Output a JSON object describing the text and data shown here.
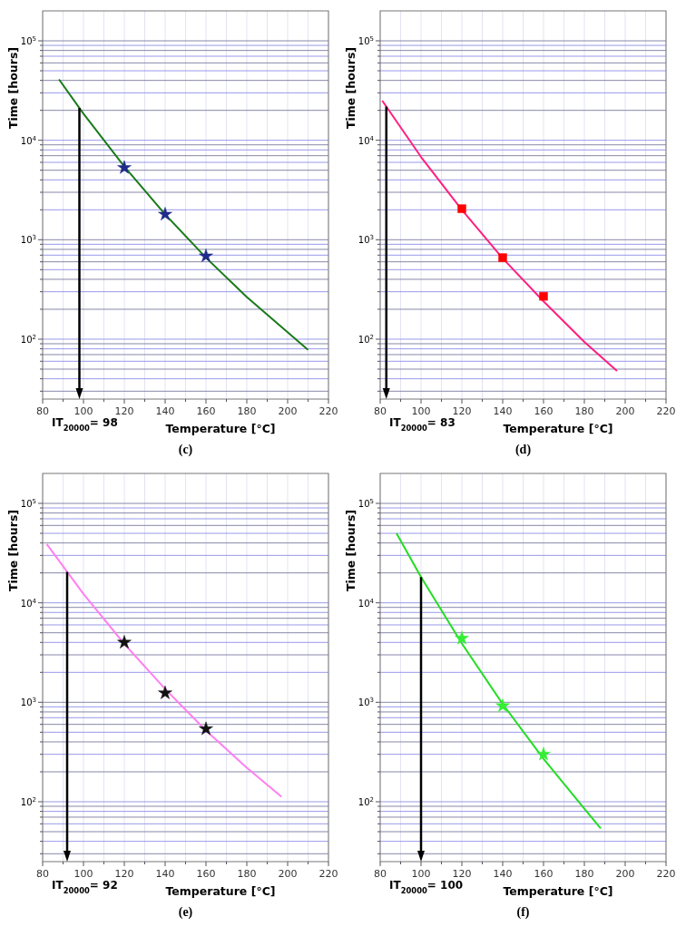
{
  "chart_data": [
    {
      "type": "line",
      "title": "(c)",
      "xlabel": "Temperature [°C]",
      "ylabel": "Time [hours]",
      "log": "y",
      "grid": true,
      "xlim": [
        80,
        220
      ],
      "ylim": [
        25,
        200000
      ],
      "xticks": [
        80,
        {
          "value": 90,
          "label": null
        },
        100,
        {
          "value": 110,
          "label": null
        },
        120,
        {
          "value": 130,
          "label": null
        },
        140,
        {
          "value": 150,
          "label": null
        },
        160,
        {
          "value": 170,
          "label": null
        },
        180,
        {
          "value": 190,
          "label": null
        },
        200,
        {
          "value": 210,
          "label": null
        },
        220
      ],
      "yticks": [
        {
          "value": 30,
          "label": null
        },
        {
          "value": 40,
          "label": null
        },
        {
          "value": 50,
          "label": null
        },
        {
          "value": 60,
          "label": null
        },
        {
          "value": 70,
          "label": null
        },
        {
          "value": 80,
          "label": null
        },
        {
          "value": 90,
          "label": null
        },
        {
          "value": 100,
          "label": "10$^{2}$"
        },
        {
          "value": 200,
          "label": null
        },
        {
          "value": 300,
          "label": null
        },
        {
          "value": 400,
          "label": null
        },
        {
          "value": 500,
          "label": null
        },
        {
          "value": 600,
          "label": null
        },
        {
          "value": 700,
          "label": null
        },
        {
          "value": 800,
          "label": null
        },
        {
          "value": 900,
          "label": null
        },
        {
          "value": 1000,
          "label": "10$^{3}$"
        },
        {
          "value": 2000,
          "label": null
        },
        {
          "value": 3000,
          "label": null
        },
        {
          "value": 4000,
          "label": null
        },
        {
          "value": 5000,
          "label": null
        },
        {
          "value": 6000,
          "label": null
        },
        {
          "value": 7000,
          "label": null
        },
        {
          "value": 8000,
          "label": null
        },
        {
          "value": 9000,
          "label": null
        },
        {
          "value": 10000,
          "label": "10$^{4}$"
        },
        {
          "value": 20000,
          "label": null
        },
        {
          "value": 30000,
          "label": null
        },
        {
          "value": 40000,
          "label": null
        },
        {
          "value": 50000,
          "label": null
        },
        {
          "value": 60000,
          "label": null
        },
        {
          "value": 70000,
          "label": null
        },
        {
          "value": 80000,
          "label": null
        },
        {
          "value": 90000,
          "label": null
        },
        {
          "value": 100000,
          "label": "10$^{5}$"
        }
      ],
      "series": [
        {
          "type": "line",
          "x": [
            88,
            100,
            120,
            140,
            160,
            180,
            210
          ],
          "values": [
            41000,
            18500,
            5450,
            1800,
            660,
            265,
            78
          ],
          "color": "#1a7a1a",
          "marker": "none"
        },
        {
          "type": "scatter",
          "x": [
            120,
            140,
            160
          ],
          "values": [
            5300,
            1800,
            685
          ],
          "color": "#1f2a8a",
          "marker": "star"
        }
      ],
      "ref_lines": [
        {
          "axis": "x",
          "value": 98,
          "label": "IT$_{20000}$= 98",
          "color": "#000000"
        }
      ]
    },
    {
      "type": "line",
      "title": "(d)",
      "xlabel": "Temperature [°C]",
      "ylabel": "Time [hours]",
      "log": "y",
      "grid": true,
      "xlim": [
        80,
        220
      ],
      "ylim": [
        25,
        200000
      ],
      "xticks": [
        80,
        {
          "value": 90,
          "label": null
        },
        100,
        {
          "value": 110,
          "label": null
        },
        120,
        {
          "value": 130,
          "label": null
        },
        140,
        {
          "value": 150,
          "label": null
        },
        160,
        {
          "value": 170,
          "label": null
        },
        180,
        {
          "value": 190,
          "label": null
        },
        200,
        {
          "value": 210,
          "label": null
        },
        220
      ],
      "yticks": [
        {
          "value": 30,
          "label": null
        },
        {
          "value": 40,
          "label": null
        },
        {
          "value": 50,
          "label": null
        },
        {
          "value": 60,
          "label": null
        },
        {
          "value": 70,
          "label": null
        },
        {
          "value": 80,
          "label": null
        },
        {
          "value": 90,
          "label": null
        },
        {
          "value": 100,
          "label": "10$^{2}$"
        },
        {
          "value": 200,
          "label": null
        },
        {
          "value": 300,
          "label": null
        },
        {
          "value": 400,
          "label": null
        },
        {
          "value": 500,
          "label": null
        },
        {
          "value": 600,
          "label": null
        },
        {
          "value": 700,
          "label": null
        },
        {
          "value": 800,
          "label": null
        },
        {
          "value": 900,
          "label": null
        },
        {
          "value": 1000,
          "label": "10$^{3}$"
        },
        {
          "value": 2000,
          "label": null
        },
        {
          "value": 3000,
          "label": null
        },
        {
          "value": 4000,
          "label": null
        },
        {
          "value": 5000,
          "label": null
        },
        {
          "value": 6000,
          "label": null
        },
        {
          "value": 7000,
          "label": null
        },
        {
          "value": 8000,
          "label": null
        },
        {
          "value": 9000,
          "label": null
        },
        {
          "value": 10000,
          "label": "10$^{4}$"
        },
        {
          "value": 20000,
          "label": null
        },
        {
          "value": 30000,
          "label": null
        },
        {
          "value": 40000,
          "label": null
        },
        {
          "value": 50000,
          "label": null
        },
        {
          "value": 60000,
          "label": null
        },
        {
          "value": 70000,
          "label": null
        },
        {
          "value": 80000,
          "label": null
        },
        {
          "value": 90000,
          "label": null
        },
        {
          "value": 100000,
          "label": "10$^{5}$"
        }
      ],
      "series": [
        {
          "type": "line",
          "x": [
            81,
            100,
            120,
            140,
            160,
            180,
            196
          ],
          "values": [
            25000,
            6800,
            2000,
            650,
            240,
            94,
            48
          ],
          "color": "#ff1f7f",
          "marker": "none"
        },
        {
          "type": "scatter",
          "x": [
            120,
            140,
            160
          ],
          "values": [
            2050,
            660,
            270
          ],
          "color": "#ff0000",
          "marker": "square"
        }
      ],
      "ref_lines": [
        {
          "axis": "x",
          "value": 83,
          "label": "IT$_{20000}$= 83",
          "color": "#000000"
        }
      ]
    },
    {
      "type": "line",
      "title": "(e)",
      "xlabel": "Temperature [°C]",
      "ylabel": "Time [hours]",
      "log": "y",
      "grid": true,
      "xlim": [
        80,
        220
      ],
      "ylim": [
        25,
        200000
      ],
      "xticks": [
        80,
        {
          "value": 90,
          "label": null
        },
        100,
        {
          "value": 110,
          "label": null
        },
        120,
        {
          "value": 130,
          "label": null
        },
        140,
        {
          "value": 150,
          "label": null
        },
        160,
        {
          "value": 170,
          "label": null
        },
        180,
        {
          "value": 190,
          "label": null
        },
        200,
        {
          "value": 210,
          "label": null
        },
        220
      ],
      "yticks": [
        {
          "value": 30,
          "label": null
        },
        {
          "value": 40,
          "label": null
        },
        {
          "value": 50,
          "label": null
        },
        {
          "value": 60,
          "label": null
        },
        {
          "value": 70,
          "label": null
        },
        {
          "value": 80,
          "label": null
        },
        {
          "value": 90,
          "label": null
        },
        {
          "value": 100,
          "label": "10$^{2}$"
        },
        {
          "value": 200,
          "label": null
        },
        {
          "value": 300,
          "label": null
        },
        {
          "value": 400,
          "label": null
        },
        {
          "value": 500,
          "label": null
        },
        {
          "value": 600,
          "label": null
        },
        {
          "value": 700,
          "label": null
        },
        {
          "value": 800,
          "label": null
        },
        {
          "value": 900,
          "label": null
        },
        {
          "value": 1000,
          "label": "10$^{3}$"
        },
        {
          "value": 2000,
          "label": null
        },
        {
          "value": 3000,
          "label": null
        },
        {
          "value": 4000,
          "label": null
        },
        {
          "value": 5000,
          "label": null
        },
        {
          "value": 6000,
          "label": null
        },
        {
          "value": 7000,
          "label": null
        },
        {
          "value": 8000,
          "label": null
        },
        {
          "value": 9000,
          "label": null
        },
        {
          "value": 10000,
          "label": "10$^{4}$"
        },
        {
          "value": 20000,
          "label": null
        },
        {
          "value": 30000,
          "label": null
        },
        {
          "value": 40000,
          "label": null
        },
        {
          "value": 50000,
          "label": null
        },
        {
          "value": 60000,
          "label": null
        },
        {
          "value": 70000,
          "label": null
        },
        {
          "value": 80000,
          "label": null
        },
        {
          "value": 90000,
          "label": null
        },
        {
          "value": 100000,
          "label": "10$^{5}$"
        }
      ],
      "series": [
        {
          "type": "line",
          "x": [
            82,
            100,
            120,
            140,
            160,
            180,
            197
          ],
          "values": [
            39000,
            12300,
            3860,
            1360,
            520,
            220,
            112
          ],
          "color": "#ff80f0",
          "marker": "none"
        },
        {
          "type": "scatter",
          "x": [
            120,
            140,
            160
          ],
          "values": [
            4000,
            1240,
            540
          ],
          "color": "#111111",
          "marker": "star"
        }
      ],
      "ref_lines": [
        {
          "axis": "x",
          "value": 92,
          "label": "IT$_{20000}$= 92",
          "color": "#000000"
        }
      ]
    },
    {
      "type": "line",
      "title": "(f)",
      "xlabel": "Temperature [°C]",
      "ylabel": "Time [hours]",
      "log": "y",
      "grid": true,
      "xlim": [
        80,
        220
      ],
      "ylim": [
        25,
        200000
      ],
      "xticks": [
        80,
        {
          "value": 90,
          "label": null
        },
        100,
        {
          "value": 110,
          "label": null
        },
        120,
        {
          "value": 130,
          "label": null
        },
        140,
        {
          "value": 150,
          "label": null
        },
        160,
        {
          "value": 170,
          "label": null
        },
        180,
        {
          "value": 190,
          "label": null
        },
        200,
        {
          "value": 210,
          "label": null
        },
        220
      ],
      "yticks": [
        {
          "value": 30,
          "label": null
        },
        {
          "value": 40,
          "label": null
        },
        {
          "value": 50,
          "label": null
        },
        {
          "value": 60,
          "label": null
        },
        {
          "value": 70,
          "label": null
        },
        {
          "value": 80,
          "label": null
        },
        {
          "value": 90,
          "label": null
        },
        {
          "value": 100,
          "label": "10$^{2}$"
        },
        {
          "value": 200,
          "label": null
        },
        {
          "value": 300,
          "label": null
        },
        {
          "value": 400,
          "label": null
        },
        {
          "value": 500,
          "label": null
        },
        {
          "value": 600,
          "label": null
        },
        {
          "value": 700,
          "label": null
        },
        {
          "value": 800,
          "label": null
        },
        {
          "value": 900,
          "label": null
        },
        {
          "value": 1000,
          "label": "10$^{3}$"
        },
        {
          "value": 2000,
          "label": null
        },
        {
          "value": 3000,
          "label": null
        },
        {
          "value": 4000,
          "label": null
        },
        {
          "value": 5000,
          "label": null
        },
        {
          "value": 6000,
          "label": null
        },
        {
          "value": 7000,
          "label": null
        },
        {
          "value": 8000,
          "label": null
        },
        {
          "value": 9000,
          "label": null
        },
        {
          "value": 10000,
          "label": "10$^{4}$"
        },
        {
          "value": 20000,
          "label": null
        },
        {
          "value": 30000,
          "label": null
        },
        {
          "value": 40000,
          "label": null
        },
        {
          "value": 50000,
          "label": null
        },
        {
          "value": 60000,
          "label": null
        },
        {
          "value": 70000,
          "label": null
        },
        {
          "value": 80000,
          "label": null
        },
        {
          "value": 90000,
          "label": null
        },
        {
          "value": 100000,
          "label": "10$^{5}$"
        }
      ],
      "series": [
        {
          "type": "line",
          "x": [
            88,
            100,
            120,
            140,
            160,
            180,
            188
          ],
          "values": [
            50000,
            18200,
            3900,
            960,
            270,
            85,
            54
          ],
          "color": "#22dd22",
          "marker": "none"
        },
        {
          "type": "scatter",
          "x": [
            120,
            140,
            160
          ],
          "values": [
            4400,
            920,
            300
          ],
          "color": "#33ee33",
          "marker": "star"
        }
      ],
      "ref_lines": [
        {
          "axis": "x",
          "value": 100,
          "label": "IT$_{20000}$= 100",
          "color": "#000000"
        }
      ]
    }
  ]
}
